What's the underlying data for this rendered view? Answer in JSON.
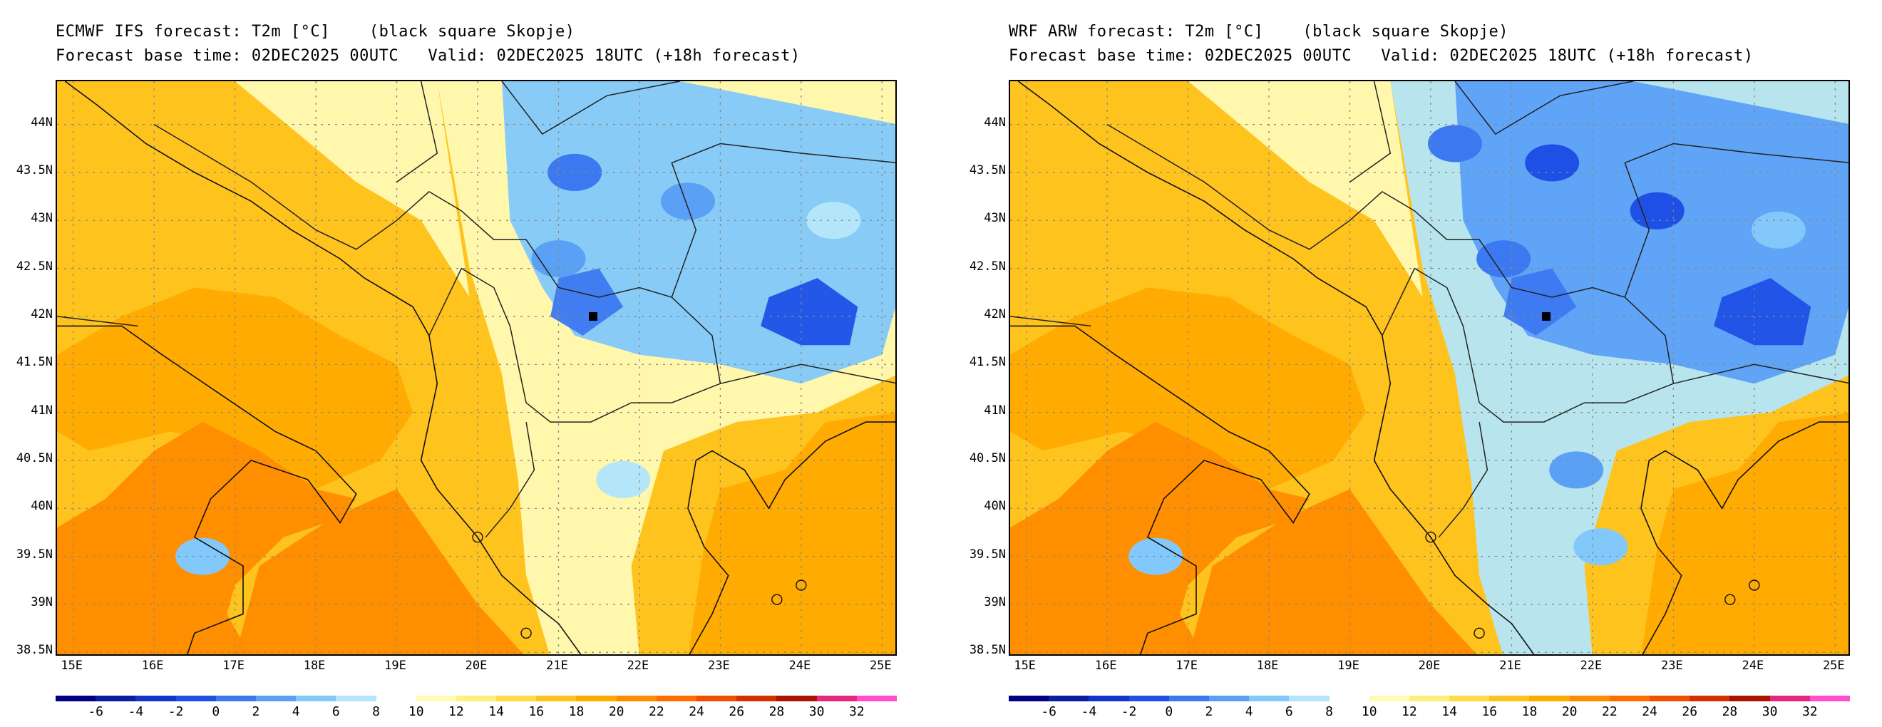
{
  "panels": [
    {
      "title_line1": "ECMWF IFS forecast: T2m [°C]    (black square Skopje)",
      "title_line2": "Forecast base time: 02DEC2025 00UTC   Valid: 02DEC2025 18UTC (+18h forecast)",
      "model": "ECMWF IFS"
    },
    {
      "title_line1": "WRF ARW forecast: T2m [°C]    (black square Skopje)",
      "title_line2": "Forecast base time: 02DEC2025 00UTC   Valid: 02DEC2025 18UTC (+18h forecast)",
      "model": "WRF ARW"
    }
  ],
  "lat_labels": [
    "44N",
    "43.5N",
    "43N",
    "42.5N",
    "42N",
    "41.5N",
    "41N",
    "40.5N",
    "40N",
    "39.5N",
    "39N",
    "38.5N"
  ],
  "lon_labels": [
    "15E",
    "16E",
    "17E",
    "18E",
    "19E",
    "20E",
    "21E",
    "22E",
    "23E",
    "24E",
    "25E"
  ],
  "colorbar": {
    "labels": [
      "-6",
      "-4",
      "-2",
      "0",
      "2",
      "4",
      "6",
      "8",
      "10",
      "12",
      "14",
      "16",
      "18",
      "20",
      "22",
      "24",
      "26",
      "28",
      "30",
      "32"
    ],
    "colors": [
      "#000080",
      "#0a1ea0",
      "#1434c8",
      "#1e50e6",
      "#3c78f0",
      "#5aa0f5",
      "#82c8fa",
      "#b4e6fa",
      "#ffffff",
      "#fffab4",
      "#fff07d",
      "#ffdc46",
      "#ffc31e",
      "#ffaa00",
      "#ff8c00",
      "#ff6e00",
      "#f05000",
      "#d23200",
      "#aa1400",
      "#e6287d",
      "#ff50c8"
    ]
  },
  "skopje": {
    "lat": 42.0,
    "lon": 21.43
  }
}
